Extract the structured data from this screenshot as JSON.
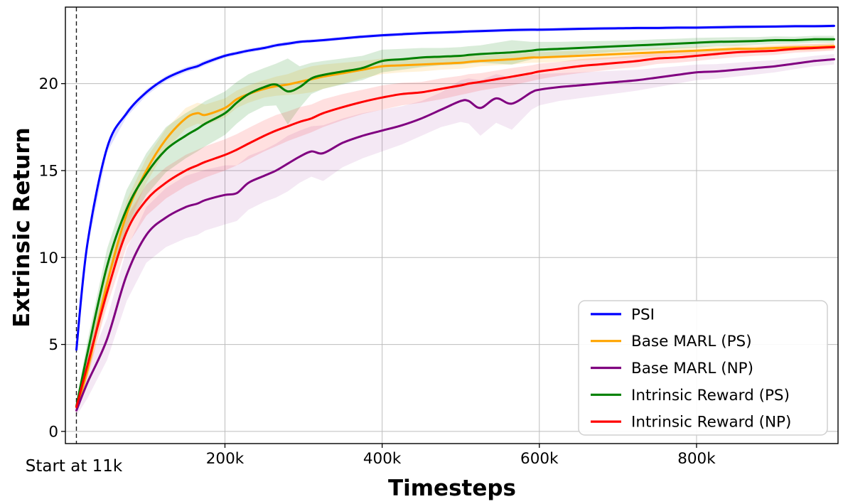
{
  "chart_data": {
    "type": "line",
    "title": "",
    "xlabel": "Timesteps",
    "ylabel": "Extrinsic Return",
    "start_annotation": "Start at 11k",
    "start_line_x": 11000,
    "xlim": [
      -3000,
      980000
    ],
    "ylim": [
      -0.7,
      24.4
    ],
    "grid": true,
    "grid_color": "#bdbdbd",
    "spine_color": "#000000",
    "start_line_color": "#1a1a1a",
    "x_ticks": [
      {
        "value": 200000,
        "label": "200k"
      },
      {
        "value": 400000,
        "label": "400k"
      },
      {
        "value": 600000,
        "label": "600k"
      },
      {
        "value": 800000,
        "label": "800k"
      }
    ],
    "y_ticks": [
      {
        "value": 0,
        "label": "0"
      },
      {
        "value": 5,
        "label": "5"
      },
      {
        "value": 10,
        "label": "10"
      },
      {
        "value": 15,
        "label": "15"
      },
      {
        "value": 20,
        "label": "20"
      }
    ],
    "legend": {
      "position": "lower-right",
      "background": "#ffffff",
      "border_color": "#d0d0d0"
    },
    "x": [
      11000,
      25000,
      50000,
      75000,
      100000,
      125000,
      150000,
      165000,
      175000,
      200000,
      215000,
      230000,
      250000,
      265000,
      280000,
      295000,
      310000,
      325000,
      350000,
      375000,
      400000,
      425000,
      450000,
      475000,
      500000,
      510000,
      525000,
      545000,
      565000,
      590000,
      600000,
      625000,
      650000,
      675000,
      700000,
      725000,
      750000,
      775000,
      800000,
      825000,
      850000,
      875000,
      900000,
      925000,
      950000,
      975000
    ],
    "series": [
      {
        "name": "PSI",
        "color": "#0000ff",
        "band_opacity": 0.12,
        "y": [
          4.7,
          10.8,
          16.3,
          18.3,
          19.5,
          20.3,
          20.8,
          21.0,
          21.2,
          21.6,
          21.75,
          21.9,
          22.05,
          22.2,
          22.3,
          22.4,
          22.45,
          22.5,
          22.6,
          22.7,
          22.78,
          22.84,
          22.9,
          22.94,
          22.98,
          23.0,
          23.02,
          23.05,
          23.08,
          23.1,
          23.1,
          23.12,
          23.15,
          23.17,
          23.18,
          23.2,
          23.2,
          23.22,
          23.22,
          23.24,
          23.26,
          23.27,
          23.28,
          23.3,
          23.3,
          23.32
        ],
        "band": [
          0.3,
          0.3,
          0.25,
          0.2,
          0.18,
          0.15,
          0.15,
          0.15,
          0.15,
          0.12,
          0.12,
          0.12,
          0.12,
          0.12,
          0.12,
          0.1,
          0.1,
          0.1,
          0.1,
          0.1,
          0.1,
          0.1,
          0.1,
          0.1,
          0.1,
          0.1,
          0.1,
          0.1,
          0.1,
          0.1,
          0.1,
          0.1,
          0.1,
          0.1,
          0.1,
          0.1,
          0.1,
          0.1,
          0.1,
          0.1,
          0.1,
          0.1,
          0.1,
          0.1,
          0.1,
          0.1
        ]
      },
      {
        "name": "Base MARL (PS)",
        "color": "#ffa500",
        "band_opacity": 0.15,
        "y": [
          1.4,
          3.5,
          8.5,
          12.5,
          15.0,
          16.8,
          18.0,
          18.3,
          18.2,
          18.6,
          19.1,
          19.4,
          19.7,
          19.85,
          19.95,
          20.1,
          20.25,
          20.4,
          20.6,
          20.8,
          21.0,
          21.05,
          21.1,
          21.15,
          21.2,
          21.25,
          21.3,
          21.35,
          21.4,
          21.5,
          21.5,
          21.55,
          21.6,
          21.65,
          21.7,
          21.75,
          21.8,
          21.85,
          21.9,
          21.95,
          22.0,
          22.0,
          22.05,
          22.08,
          22.1,
          22.15
        ],
        "band": [
          0.3,
          0.6,
          0.9,
          0.8,
          0.7,
          0.6,
          0.6,
          0.6,
          0.6,
          0.55,
          0.5,
          0.5,
          0.5,
          0.55,
          0.6,
          0.7,
          0.75,
          0.7,
          0.6,
          0.5,
          0.45,
          0.4,
          0.4,
          0.35,
          0.35,
          0.35,
          0.3,
          0.3,
          0.3,
          0.3,
          0.3,
          0.3,
          0.28,
          0.28,
          0.25,
          0.25,
          0.25,
          0.22,
          0.22,
          0.2,
          0.2,
          0.2,
          0.2,
          0.2,
          0.2,
          0.2
        ]
      },
      {
        "name": "Base MARL (NP)",
        "color": "#800080",
        "band_opacity": 0.09,
        "y": [
          1.2,
          2.8,
          5.3,
          9.0,
          11.3,
          12.3,
          12.9,
          13.1,
          13.3,
          13.6,
          13.7,
          14.3,
          14.7,
          15.0,
          15.4,
          15.8,
          16.1,
          16.0,
          16.6,
          17.0,
          17.3,
          17.6,
          18.0,
          18.5,
          19.0,
          19.0,
          18.6,
          19.15,
          18.85,
          19.5,
          19.65,
          19.8,
          19.9,
          20.0,
          20.1,
          20.2,
          20.35,
          20.5,
          20.65,
          20.7,
          20.8,
          20.9,
          21.0,
          21.15,
          21.3,
          21.4
        ],
        "band": [
          0.3,
          0.9,
          1.2,
          1.5,
          1.6,
          1.7,
          1.8,
          1.8,
          1.75,
          1.7,
          1.6,
          1.55,
          1.5,
          1.55,
          1.6,
          1.5,
          1.45,
          1.6,
          1.4,
          1.3,
          1.2,
          1.1,
          1.0,
          1.0,
          1.2,
          1.3,
          1.6,
          1.4,
          1.5,
          1.0,
          0.9,
          0.8,
          0.75,
          0.7,
          0.65,
          0.6,
          0.55,
          0.5,
          0.45,
          0.42,
          0.4,
          0.38,
          0.35,
          0.32,
          0.3,
          0.3
        ]
      },
      {
        "name": "Intrinsic Reward (PS)",
        "color": "#008000",
        "band_opacity": 0.15,
        "y": [
          1.45,
          4.5,
          9.5,
          12.8,
          14.8,
          16.2,
          17.0,
          17.4,
          17.7,
          18.3,
          18.9,
          19.4,
          19.8,
          19.95,
          19.55,
          19.8,
          20.3,
          20.5,
          20.7,
          20.9,
          21.3,
          21.4,
          21.5,
          21.55,
          21.6,
          21.65,
          21.7,
          21.75,
          21.8,
          21.9,
          21.95,
          22.0,
          22.05,
          22.1,
          22.15,
          22.2,
          22.25,
          22.3,
          22.35,
          22.4,
          22.42,
          22.45,
          22.5,
          22.5,
          22.55,
          22.55
        ],
        "band": [
          0.3,
          0.7,
          1.0,
          1.1,
          1.2,
          1.3,
          1.3,
          1.3,
          1.3,
          1.25,
          1.2,
          1.15,
          1.1,
          1.2,
          1.9,
          1.2,
          0.9,
          0.8,
          0.75,
          0.7,
          0.65,
          0.6,
          0.55,
          0.5,
          0.5,
          0.5,
          0.5,
          0.6,
          0.7,
          0.5,
          0.45,
          0.4,
          0.38,
          0.35,
          0.32,
          0.3,
          0.3,
          0.28,
          0.28,
          0.25,
          0.25,
          0.22,
          0.22,
          0.2,
          0.2,
          0.2
        ]
      },
      {
        "name": "Intrinsic Reward (NP)",
        "color": "#ff0000",
        "band_opacity": 0.12,
        "y": [
          1.4,
          3.8,
          8.0,
          11.5,
          13.3,
          14.3,
          15.0,
          15.3,
          15.5,
          15.9,
          16.2,
          16.55,
          17.0,
          17.3,
          17.55,
          17.8,
          18.0,
          18.3,
          18.65,
          18.95,
          19.2,
          19.4,
          19.5,
          19.7,
          19.9,
          20.0,
          20.1,
          20.25,
          20.4,
          20.6,
          20.7,
          20.85,
          21.0,
          21.1,
          21.2,
          21.3,
          21.45,
          21.5,
          21.6,
          21.7,
          21.8,
          21.85,
          21.9,
          22.0,
          22.05,
          22.1
        ],
        "band": [
          0.3,
          0.6,
          0.8,
          0.85,
          0.9,
          0.9,
          0.9,
          0.9,
          0.9,
          0.9,
          0.9,
          0.9,
          0.9,
          0.9,
          0.85,
          0.85,
          0.8,
          0.8,
          0.75,
          0.7,
          0.7,
          0.65,
          0.6,
          0.6,
          0.55,
          0.55,
          0.5,
          0.5,
          0.5,
          0.45,
          0.45,
          0.4,
          0.4,
          0.38,
          0.35,
          0.35,
          0.32,
          0.3,
          0.3,
          0.28,
          0.28,
          0.25,
          0.25,
          0.22,
          0.22,
          0.2
        ]
      }
    ]
  }
}
